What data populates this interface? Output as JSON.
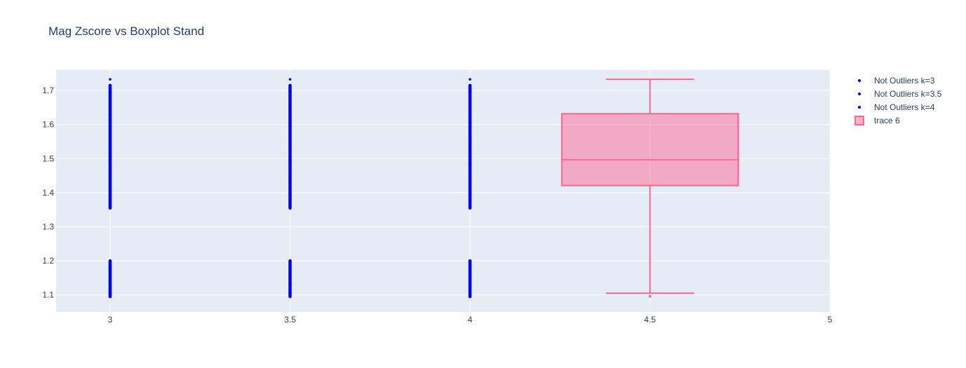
{
  "chart_data": {
    "type": "scatter",
    "title": "Mag Zscore vs Boxplot Stand",
    "xlabel": "",
    "ylabel": "",
    "xlim": [
      2.85,
      5.0
    ],
    "ylim": [
      1.05,
      1.76
    ],
    "x_ticks": [
      3,
      3.5,
      4,
      4.5,
      5
    ],
    "y_ticks": [
      1.1,
      1.2,
      1.3,
      1.4,
      1.5,
      1.6,
      1.7
    ],
    "grid": true,
    "legend_position": "top-right",
    "plot_bg": "#e5ecf6",
    "series": [
      {
        "name": "Not Outliers k=3",
        "type": "scatter",
        "x": 3,
        "color": "#0000ff",
        "y_ranges": [
          [
            1.095,
            1.2
          ],
          [
            1.355,
            1.715
          ]
        ],
        "y_extra": [
          1.733
        ]
      },
      {
        "name": "Not Outliers k=3.5",
        "type": "scatter",
        "x": 3.5,
        "color": "#0000ff",
        "y_ranges": [
          [
            1.095,
            1.2
          ],
          [
            1.355,
            1.715
          ]
        ],
        "y_extra": [
          1.733
        ]
      },
      {
        "name": "Not Outliers k=4",
        "type": "scatter",
        "x": 4,
        "color": "#0000ff",
        "y_ranges": [
          [
            1.095,
            1.2
          ],
          [
            1.355,
            1.715
          ]
        ],
        "y_extra": [
          1.733
        ]
      },
      {
        "name": "trace 6",
        "type": "box",
        "x": 4.5,
        "color": "#ff6692",
        "fill": "rgba(255,102,146,0.5)",
        "box_width": 0.49,
        "whisker_width": 0.245,
        "q1": 1.421,
        "median": 1.497,
        "q3": 1.632,
        "lower_fence": 1.105,
        "upper_fence": 1.733,
        "outliers": [
          1.096
        ]
      }
    ]
  }
}
